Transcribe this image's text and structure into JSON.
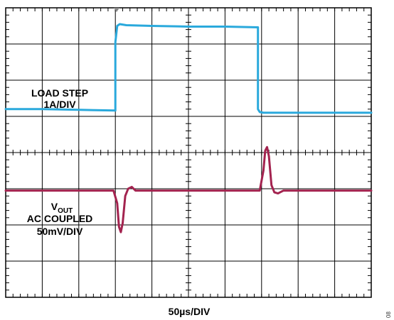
{
  "chart_data": {
    "type": "line",
    "grid": true,
    "grid_divisions": {
      "x": 10,
      "y": 8
    },
    "xlabel": "50µs/DIV",
    "figure_id": "08",
    "colors": {
      "load": "#2aa9dc",
      "vout": "#a3234f",
      "grid": "#000000",
      "background": "#ffffff"
    },
    "series": [
      {
        "name": "LOAD STEP 1A/DIV",
        "label_lines": [
          "LOAD STEP",
          "1A/DIV"
        ],
        "units": "divisions",
        "points": [
          [
            0,
            1.2
          ],
          [
            1.0,
            1.2
          ],
          [
            2.0,
            1.18
          ],
          [
            3.0,
            1.16
          ],
          [
            3.0,
            3.05
          ],
          [
            3.05,
            3.5
          ],
          [
            3.12,
            3.55
          ],
          [
            3.3,
            3.52
          ],
          [
            4.0,
            3.5
          ],
          [
            5.0,
            3.48
          ],
          [
            6.0,
            3.48
          ],
          [
            6.9,
            3.46
          ],
          [
            6.9,
            1.2
          ],
          [
            6.95,
            1.12
          ],
          [
            7.05,
            1.1
          ],
          [
            8.0,
            1.1
          ],
          [
            9.0,
            1.1
          ],
          [
            10.0,
            1.1
          ]
        ]
      },
      {
        "name": "VOUT AC COUPLED 50mV/DIV",
        "label_main": "V",
        "label_sub": "OUT",
        "label_lines": [
          "AC COUPLED",
          "50mV/DIV"
        ],
        "units": "divisions",
        "points": [
          [
            0,
            -1.05
          ],
          [
            1.5,
            -1.05
          ],
          [
            2.95,
            -1.05
          ],
          [
            3.05,
            -1.4
          ],
          [
            3.1,
            -2.05
          ],
          [
            3.15,
            -2.2
          ],
          [
            3.2,
            -1.95
          ],
          [
            3.27,
            -1.2
          ],
          [
            3.35,
            -1.0
          ],
          [
            3.45,
            -0.95
          ],
          [
            3.55,
            -1.05
          ],
          [
            4.0,
            -1.05
          ],
          [
            5.5,
            -1.05
          ],
          [
            6.95,
            -1.05
          ],
          [
            7.05,
            -0.5
          ],
          [
            7.1,
            0.05
          ],
          [
            7.15,
            0.15
          ],
          [
            7.2,
            -0.1
          ],
          [
            7.27,
            -0.9
          ],
          [
            7.35,
            -1.1
          ],
          [
            7.45,
            -1.13
          ],
          [
            7.6,
            -1.05
          ],
          [
            8.5,
            -1.05
          ],
          [
            10.0,
            -1.05
          ]
        ]
      }
    ]
  }
}
